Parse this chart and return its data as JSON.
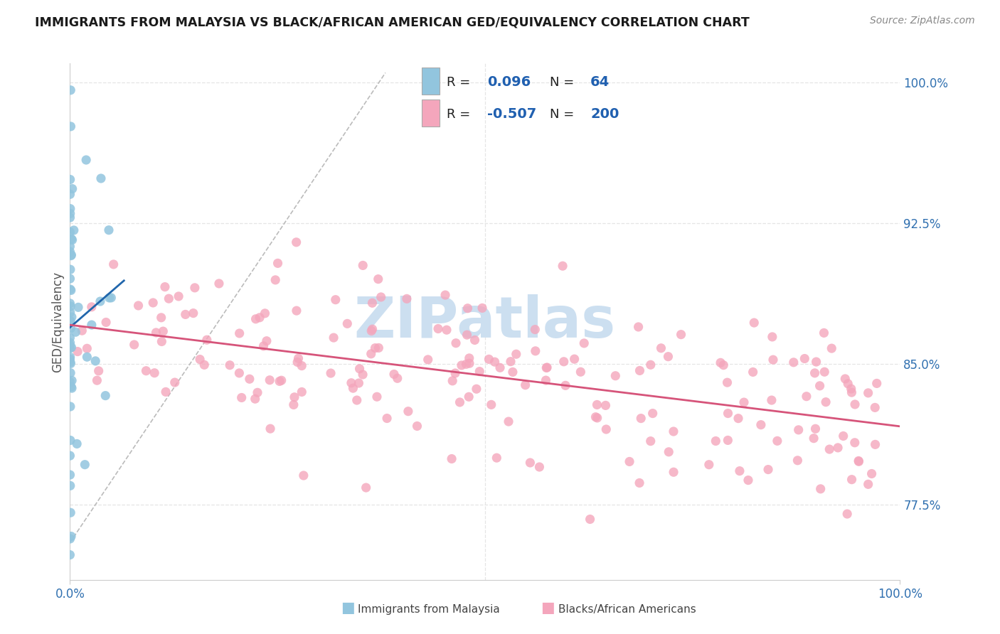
{
  "title": "IMMIGRANTS FROM MALAYSIA VS BLACK/AFRICAN AMERICAN GED/EQUIVALENCY CORRELATION CHART",
  "source": "Source: ZipAtlas.com",
  "ylabel": "GED/Equivalency",
  "xlim": [
    0.0,
    1.0
  ],
  "ylim": [
    0.735,
    1.01
  ],
  "yticks": [
    0.775,
    0.85,
    0.925,
    1.0
  ],
  "ytick_labels": [
    "77.5%",
    "85.0%",
    "92.5%",
    "100.0%"
  ],
  "blue_R": 0.096,
  "blue_N": 64,
  "pink_R": -0.507,
  "pink_N": 200,
  "blue_color": "#92c5de",
  "pink_color": "#f4a6bc",
  "blue_line_color": "#2166ac",
  "pink_line_color": "#d6547a",
  "diagonal_color": "#bbbbbb",
  "watermark": "ZIPatlas",
  "watermark_color": "#ccdff0",
  "title_color": "#1a1a1a",
  "axis_label_color": "#555555",
  "tick_color": "#3070b0",
  "grid_color": "#e5e5e5",
  "background_color": "#ffffff",
  "legend_R_color": "#222222",
  "legend_val_color": "#2060b0"
}
